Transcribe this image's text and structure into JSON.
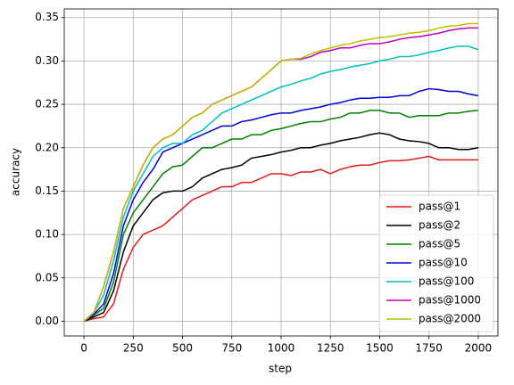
{
  "chart_data": {
    "type": "line",
    "xlabel": "step",
    "ylabel": "accuracy",
    "x": [
      0,
      50,
      100,
      150,
      200,
      250,
      300,
      350,
      400,
      450,
      500,
      550,
      600,
      650,
      700,
      750,
      800,
      850,
      900,
      950,
      1000,
      1050,
      1100,
      1150,
      1200,
      1250,
      1300,
      1350,
      1400,
      1450,
      1500,
      1550,
      1600,
      1650,
      1700,
      1750,
      1800,
      1850,
      1900,
      1950,
      2000
    ],
    "series": [
      {
        "name": "pass@1",
        "color": "#e41a1c",
        "values": [
          0,
          0.003,
          0.005,
          0.02,
          0.06,
          0.085,
          0.1,
          0.105,
          0.11,
          0.12,
          0.13,
          0.14,
          0.145,
          0.15,
          0.155,
          0.155,
          0.16,
          0.16,
          0.165,
          0.17,
          0.17,
          0.168,
          0.172,
          0.172,
          0.175,
          0.17,
          0.175,
          0.178,
          0.18,
          0.18,
          0.183,
          0.185,
          0.185,
          0.186,
          0.188,
          0.19,
          0.186,
          0.186,
          0.186,
          0.186,
          0.186
        ]
      },
      {
        "name": "pass@2",
        "color": "#000000",
        "values": [
          0,
          0.005,
          0.01,
          0.035,
          0.08,
          0.11,
          0.125,
          0.14,
          0.148,
          0.15,
          0.15,
          0.155,
          0.165,
          0.17,
          0.175,
          0.177,
          0.18,
          0.188,
          0.19,
          0.192,
          0.195,
          0.197,
          0.2,
          0.2,
          0.203,
          0.205,
          0.208,
          0.21,
          0.212,
          0.215,
          0.217,
          0.215,
          0.21,
          0.208,
          0.207,
          0.205,
          0.2,
          0.2,
          0.198,
          0.198,
          0.2
        ]
      },
      {
        "name": "pass@5",
        "color": "#008000",
        "values": [
          0,
          0.007,
          0.015,
          0.045,
          0.1,
          0.125,
          0.14,
          0.155,
          0.17,
          0.178,
          0.18,
          0.19,
          0.2,
          0.2,
          0.205,
          0.21,
          0.21,
          0.215,
          0.215,
          0.22,
          0.222,
          0.225,
          0.228,
          0.23,
          0.23,
          0.233,
          0.235,
          0.24,
          0.24,
          0.243,
          0.243,
          0.24,
          0.24,
          0.235,
          0.237,
          0.237,
          0.237,
          0.24,
          0.24,
          0.242,
          0.243
        ]
      },
      {
        "name": "pass@10",
        "color": "#0000dd",
        "values": [
          0,
          0.008,
          0.02,
          0.055,
          0.11,
          0.14,
          0.16,
          0.175,
          0.195,
          0.2,
          0.205,
          0.21,
          0.215,
          0.22,
          0.225,
          0.225,
          0.23,
          0.232,
          0.235,
          0.238,
          0.24,
          0.24,
          0.243,
          0.245,
          0.247,
          0.25,
          0.252,
          0.255,
          0.257,
          0.257,
          0.258,
          0.258,
          0.26,
          0.26,
          0.265,
          0.268,
          0.267,
          0.265,
          0.265,
          0.262,
          0.26
        ]
      },
      {
        "name": "pass@100",
        "color": "#00bfbf",
        "values": [
          0,
          0.01,
          0.03,
          0.07,
          0.12,
          0.15,
          0.17,
          0.19,
          0.2,
          0.205,
          0.205,
          0.215,
          0.22,
          0.23,
          0.24,
          0.245,
          0.25,
          0.255,
          0.26,
          0.265,
          0.27,
          0.273,
          0.277,
          0.28,
          0.285,
          0.288,
          0.29,
          0.293,
          0.295,
          0.297,
          0.3,
          0.302,
          0.305,
          0.305,
          0.307,
          0.31,
          0.312,
          0.315,
          0.317,
          0.317,
          0.313
        ]
      },
      {
        "name": "pass@1000",
        "color": "#bf00bf",
        "values": [
          0,
          0.01,
          0.04,
          0.08,
          0.13,
          0.155,
          0.18,
          0.2,
          0.21,
          0.215,
          0.225,
          0.235,
          0.24,
          0.25,
          0.255,
          0.26,
          0.265,
          0.27,
          0.28,
          0.29,
          0.3,
          0.302,
          0.302,
          0.305,
          0.31,
          0.312,
          0.315,
          0.315,
          0.318,
          0.32,
          0.32,
          0.322,
          0.325,
          0.327,
          0.328,
          0.33,
          0.332,
          0.335,
          0.337,
          0.338,
          0.338
        ]
      },
      {
        "name": "pass@2000",
        "color": "#bfbf00",
        "values": [
          0,
          0.01,
          0.04,
          0.08,
          0.13,
          0.155,
          0.18,
          0.2,
          0.21,
          0.215,
          0.225,
          0.235,
          0.24,
          0.25,
          0.255,
          0.26,
          0.265,
          0.27,
          0.28,
          0.29,
          0.3,
          0.302,
          0.303,
          0.308,
          0.312,
          0.315,
          0.318,
          0.32,
          0.323,
          0.325,
          0.327,
          0.328,
          0.33,
          0.332,
          0.333,
          0.335,
          0.338,
          0.34,
          0.341,
          0.343,
          0.343
        ]
      }
    ],
    "xlim": [
      -100,
      2100
    ],
    "ylim": [
      -0.017,
      0.36
    ],
    "xticks": [
      0,
      250,
      500,
      750,
      1000,
      1250,
      1500,
      1750,
      2000
    ],
    "yticks": [
      {
        "value": 0,
        "label": "0.00"
      },
      {
        "value": 0.05,
        "label": "0.05"
      },
      {
        "value": 0.1,
        "label": "0.10"
      },
      {
        "value": 0.15,
        "label": "0.15"
      },
      {
        "value": 0.2,
        "label": "0.20"
      },
      {
        "value": 0.25,
        "label": "0.25"
      },
      {
        "value": 0.3,
        "label": "0.30"
      },
      {
        "value": 0.35,
        "label": "0.35"
      }
    ],
    "grid": true,
    "legend": "lower right"
  }
}
